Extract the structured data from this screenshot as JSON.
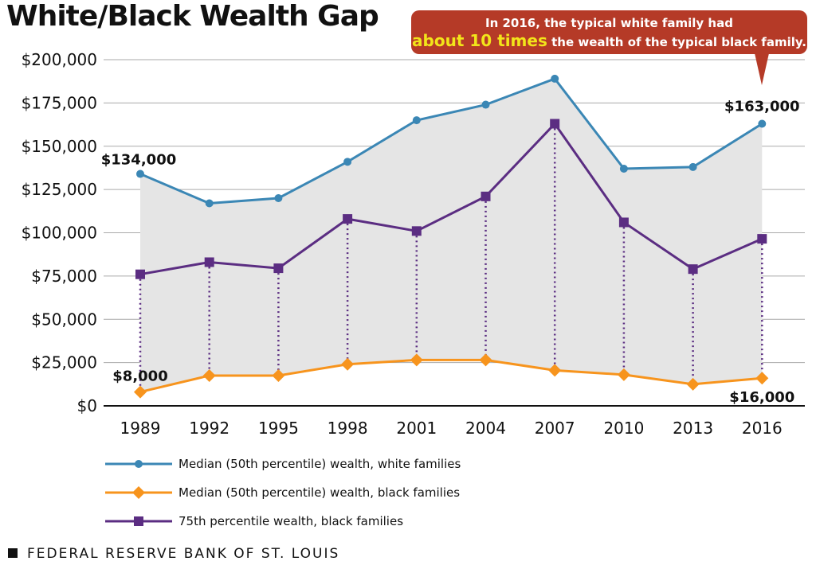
{
  "chart_data": {
    "type": "line",
    "title": "White/Black Wealth Gap",
    "categories": [
      "1989",
      "1992",
      "1995",
      "1998",
      "2001",
      "2004",
      "2007",
      "2010",
      "2013",
      "2016"
    ],
    "ylim": [
      0,
      200000
    ],
    "yticks": [
      0,
      25000,
      50000,
      75000,
      100000,
      125000,
      150000,
      175000,
      200000
    ],
    "ytick_labels": [
      "$0",
      "$25,000",
      "$50,000",
      "$75,000",
      "$100,000",
      "$125,000",
      "$150,000",
      "$175,000",
      "$200,000"
    ],
    "grid": true,
    "legend_position": "bottom",
    "series": [
      {
        "name": "Median (50th percentile) wealth, white families",
        "color": "#3b87b5",
        "marker": "circle",
        "values": [
          134000,
          117000,
          120000,
          141000,
          165000,
          174000,
          189000,
          137000,
          138000,
          163000
        ]
      },
      {
        "name": "Median (50th percentile) wealth, black families",
        "color": "#f7941d",
        "marker": "diamond",
        "values": [
          8000,
          17500,
          17500,
          24000,
          26500,
          26500,
          20500,
          18000,
          12500,
          16000
        ]
      },
      {
        "name": "75th percentile wealth, black families",
        "color": "#5b2d82",
        "marker": "square",
        "values": [
          76000,
          83000,
          79500,
          108000,
          101000,
          121000,
          163000,
          106000,
          79000,
          96500
        ]
      }
    ],
    "annotations": [
      {
        "text": "$134,000",
        "series": 0,
        "index": 0
      },
      {
        "text": "$163,000",
        "series": 0,
        "index": 9
      },
      {
        "text": "$8,000",
        "series": 1,
        "index": 0
      },
      {
        "text": "$16,000",
        "series": 1,
        "index": 9
      }
    ],
    "fill_between_color": "#e5e5e5"
  },
  "callout": {
    "line1": "In 2016, the typical white family had",
    "highlight": "about 10 times",
    "line2": " the wealth of the typical black family.",
    "color": "#b53a27",
    "highlight_color": "#f2e51a"
  },
  "footer": "FEDERAL RESERVE BANK OF ST. LOUIS"
}
